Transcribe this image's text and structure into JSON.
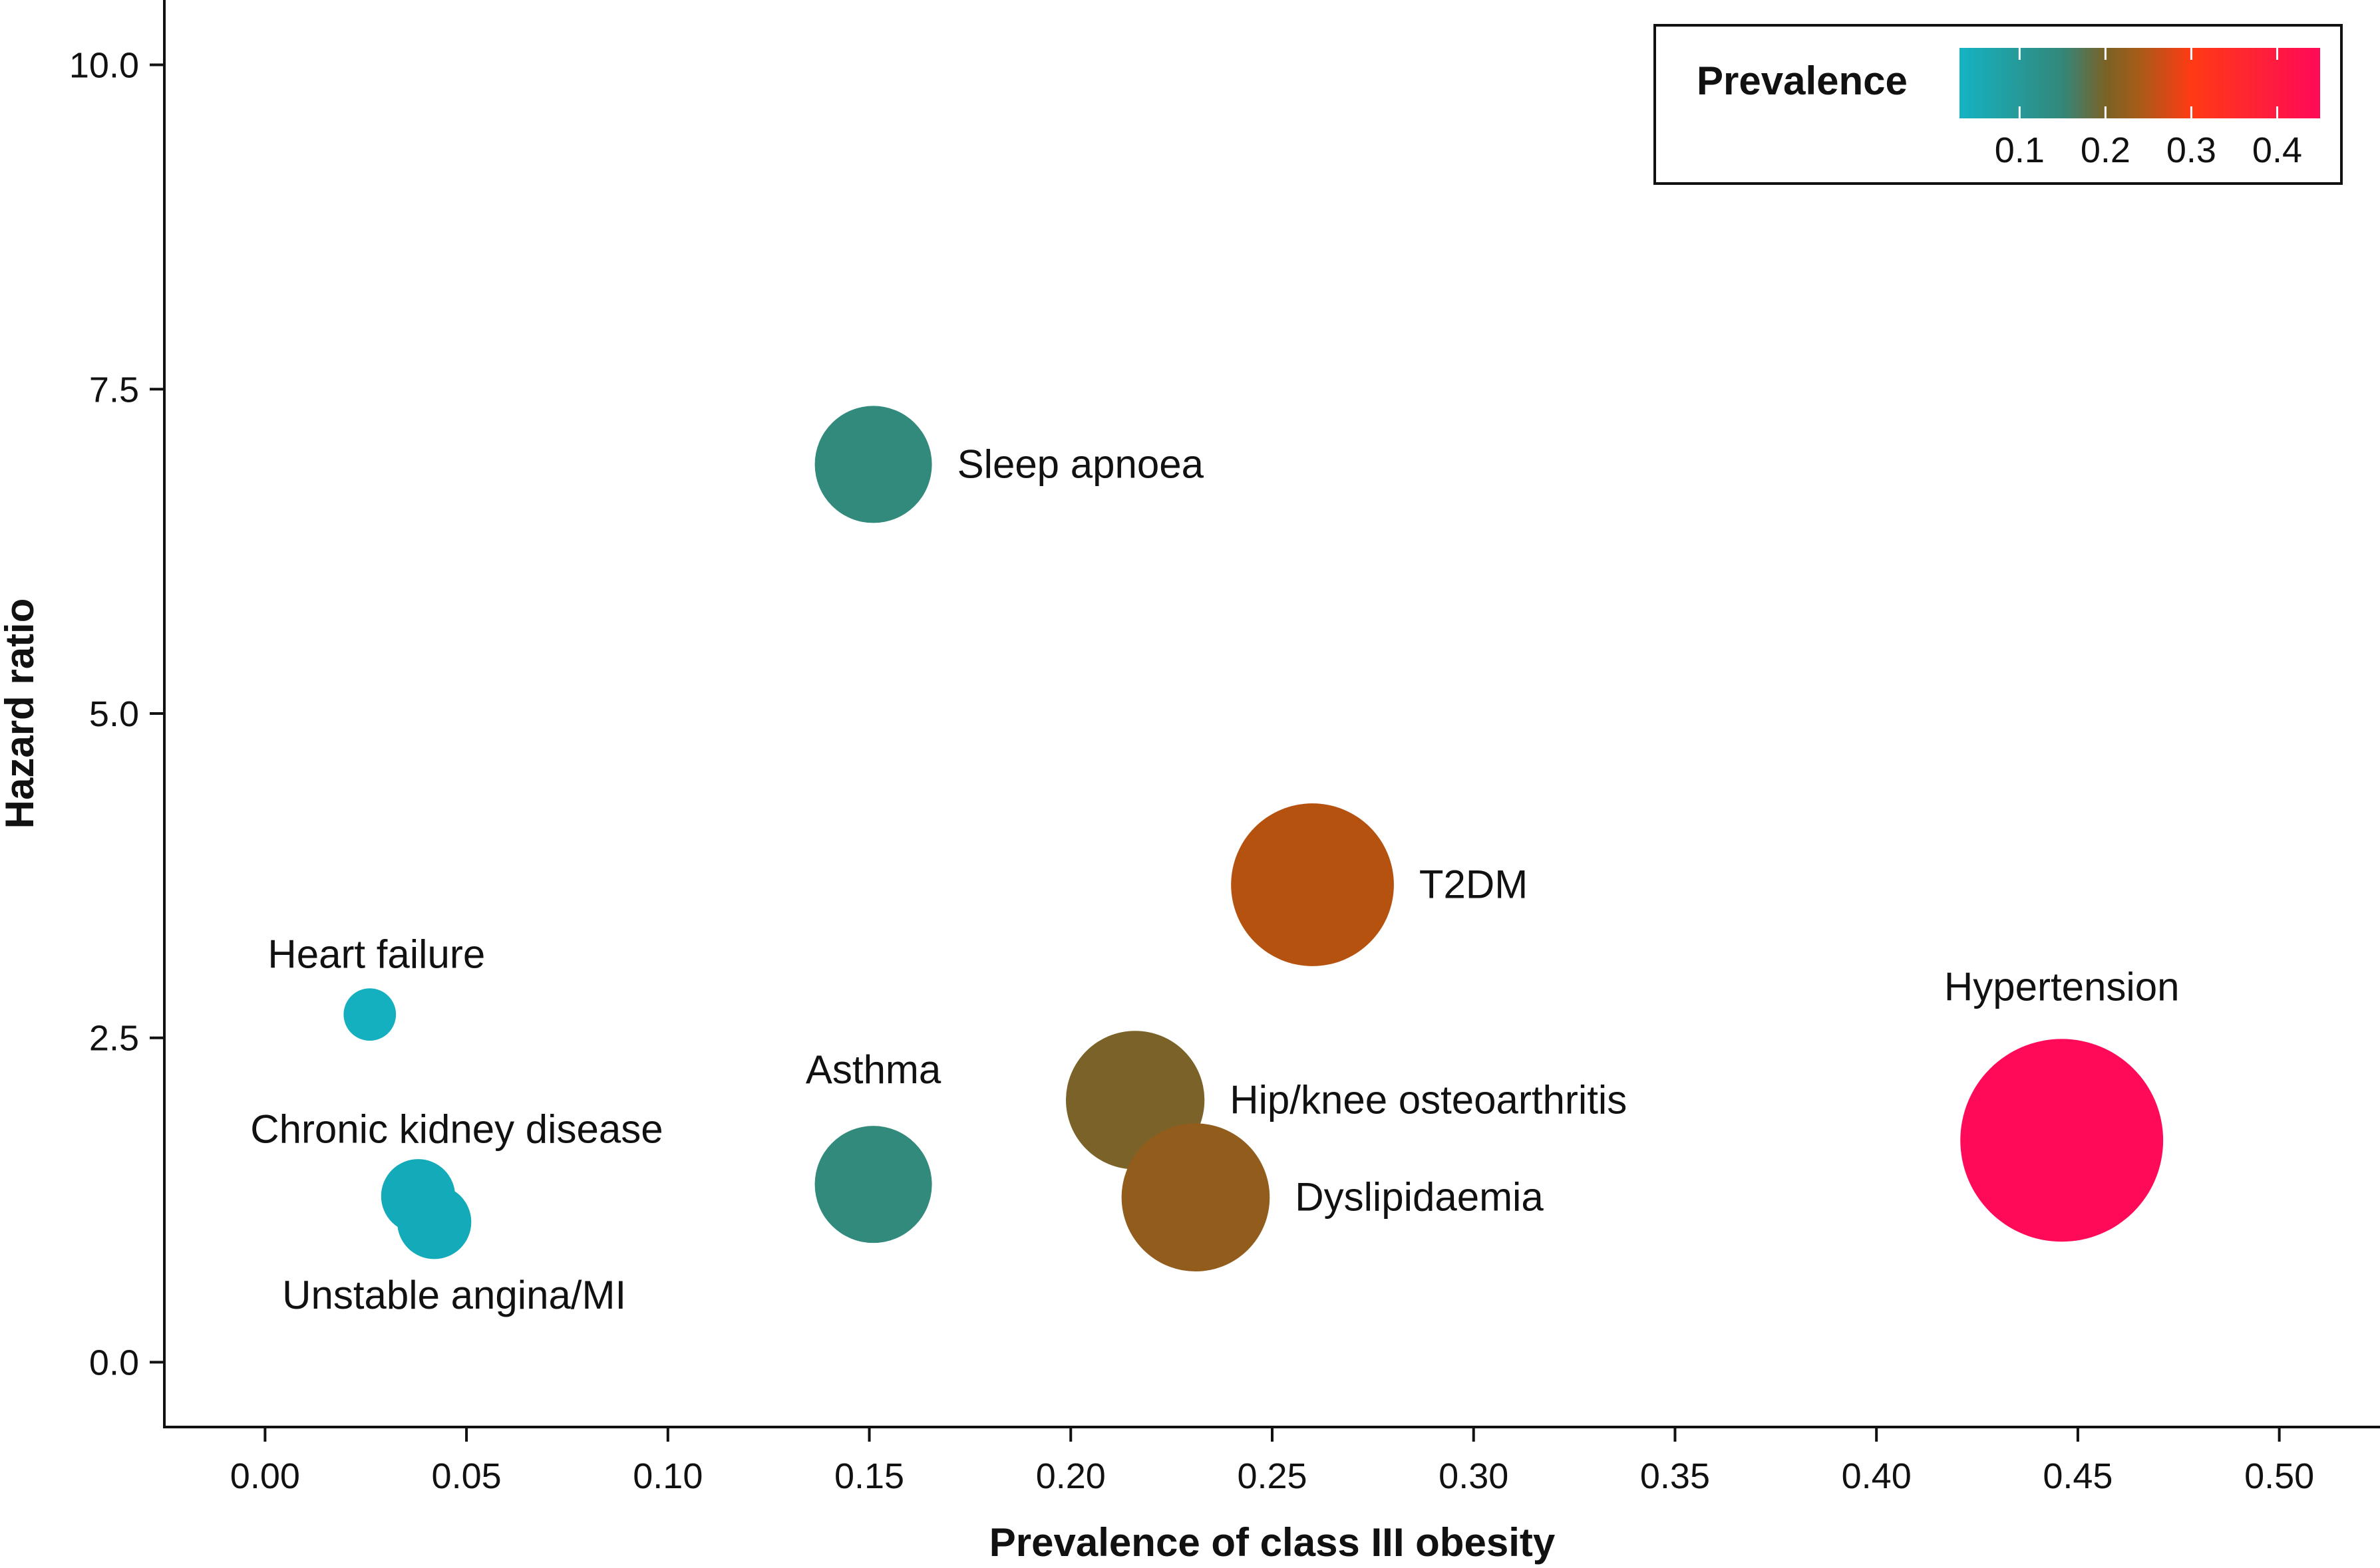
{
  "chart_data": {
    "type": "scatter",
    "subtype": "bubble",
    "xlabel": "Prevalence of class III obesity",
    "ylabel": "Hazard ratio",
    "xlim": [
      -0.025,
      0.525
    ],
    "ylim": [
      -0.5,
      10.5
    ],
    "xticks": [
      0.0,
      0.05,
      0.1,
      0.15,
      0.2,
      0.25,
      0.3,
      0.35,
      0.4,
      0.45,
      0.5
    ],
    "xtick_labels": [
      "0.00",
      "0.05",
      "0.10",
      "0.15",
      "0.20",
      "0.25",
      "0.30",
      "0.35",
      "0.40",
      "0.45",
      "0.50"
    ],
    "yticks": [
      0.0,
      2.5,
      5.0,
      7.5,
      10.0
    ],
    "ytick_labels": [
      "0.0",
      "2.5",
      "5.0",
      "7.5",
      "10.0"
    ],
    "grid": false,
    "legend": {
      "title": "Prevalence",
      "placement": "top-right",
      "range": [
        0.03,
        0.45
      ],
      "ticks": [
        0.1,
        0.2,
        0.3,
        0.4
      ],
      "tick_labels": [
        "0.1",
        "0.2",
        "0.3",
        "0.4"
      ],
      "gradient_stops": [
        {
          "value": 0.03,
          "color": "#14b3c3"
        },
        {
          "value": 0.15,
          "color": "#33877a"
        },
        {
          "value": 0.2,
          "color": "#7a6226"
        },
        {
          "value": 0.24,
          "color": "#a75c18"
        },
        {
          "value": 0.3,
          "color": "#ff3a14"
        },
        {
          "value": 0.45,
          "color": "#ff0a58"
        }
      ]
    },
    "points": [
      {
        "name": "Heart failure",
        "x": 0.026,
        "y": 2.68,
        "prevalence": 0.03,
        "color": "#14b0c0",
        "label_pos": "above"
      },
      {
        "name": "Chronic kidney disease",
        "x": 0.038,
        "y": 1.28,
        "prevalence": 0.06,
        "color": "#13aab9",
        "label_pos": "above"
      },
      {
        "name": "Unstable angina/MI",
        "x": 0.042,
        "y": 1.08,
        "prevalence": 0.06,
        "color": "#13aab9",
        "label_pos": "below"
      },
      {
        "name": "Sleep apnoea",
        "x": 0.151,
        "y": 6.92,
        "prevalence": 0.15,
        "color": "#328a7c",
        "label_pos": "right"
      },
      {
        "name": "Asthma",
        "x": 0.151,
        "y": 1.37,
        "prevalence": 0.15,
        "color": "#328a7c",
        "label_pos": "above"
      },
      {
        "name": "Hip/knee osteoarthritis",
        "x": 0.216,
        "y": 2.02,
        "prevalence": 0.21,
        "color": "#7a6228",
        "label_pos": "right"
      },
      {
        "name": "Dyslipidaemia",
        "x": 0.231,
        "y": 1.27,
        "prevalence": 0.24,
        "color": "#925d1c",
        "label_pos": "right"
      },
      {
        "name": "T2DM",
        "x": 0.26,
        "y": 3.68,
        "prevalence": 0.29,
        "color": "#b65210",
        "label_pos": "right"
      },
      {
        "name": "Hypertension",
        "x": 0.446,
        "y": 1.71,
        "prevalence": 0.45,
        "color": "#ff0a58",
        "label_pos": "above"
      }
    ]
  }
}
